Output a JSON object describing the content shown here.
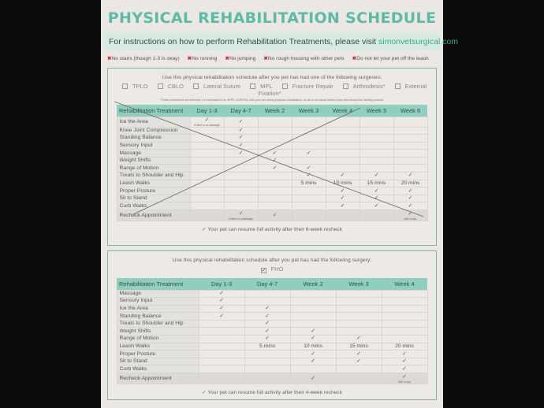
{
  "title": "PHYSICAL REHABILITATION SCHEDULE",
  "banner": {
    "text": "For instructions on how to perform Rehabilitation Treatments, please visit ",
    "link": "simonvetsurgical.com"
  },
  "rules": [
    "No stairs (though 1-3 is okay)",
    "No running",
    "No jumping",
    "No rough housing with other pets",
    "Do not let your pet off the leash"
  ],
  "schedule1": {
    "intro": "Use this physical rehabilitation schedule after you pet has had one of the following surgeries:",
    "surgeries": [
      "TPLO",
      "CBLO",
      "Lateral Suture",
      "MPL",
      "Fracture Repair",
      "Arthrodesis*",
      "External Fixation*"
    ],
    "note": "*These procedures are intensive, it is important to be VERY CAREFUL with your pet during physical rehabilitation, so as to not cause further injury and disrupt the healing process.",
    "headers": [
      "Rehabilitation Treatment",
      "Day 1-3",
      "Day 4-7",
      "Week 2",
      "Week 3",
      "Week 4",
      "Week 5",
      "Week 6"
    ],
    "rows": [
      [
        "Ice the Area",
        "✓|if there is no bandage",
        "✓",
        "",
        "",
        "",
        "",
        ""
      ],
      [
        "Knee Joint Compression",
        "",
        "✓",
        "",
        "",
        "",
        "",
        ""
      ],
      [
        "Standing Balance",
        "",
        "✓",
        "",
        "",
        "",
        "",
        ""
      ],
      [
        "Sensory Input",
        "",
        "✓",
        "",
        "",
        "",
        "",
        ""
      ],
      [
        "Massage",
        "",
        "✓",
        "✓",
        "✓",
        "",
        "",
        ""
      ],
      [
        "Weight Shifts",
        "",
        "",
        "✓",
        "",
        "",
        "",
        ""
      ],
      [
        "Range of Motion",
        "",
        "",
        "✓",
        "✓",
        "",
        "",
        ""
      ],
      [
        "Treats to Shoulder and Hip",
        "",
        "",
        "",
        "✓",
        "✓",
        "✓",
        "✓"
      ],
      [
        "Leash Walks",
        "",
        "",
        "",
        "5 mins",
        "10 mins",
        "15 mins",
        "20 mins"
      ],
      [
        "Proper Posture",
        "",
        "",
        "",
        "",
        "✓",
        "✓",
        "✓"
      ],
      [
        "Sit to Stand",
        "",
        "",
        "",
        "",
        "✓",
        "✓",
        "✓"
      ],
      [
        "Curb Walks",
        "",
        "",
        "",
        "",
        "✓",
        "✓",
        "✓"
      ],
      [
        "Recheck Appointment",
        "",
        "✓|if there is a bandage",
        "✓",
        "",
        "",
        "",
        "✓|with x-rays"
      ]
    ],
    "footer": "✓ Your pet can resume full activity after their 6-week recheck"
  },
  "schedule2": {
    "intro": "Use this physical rehabilitation schedule after you pet has had the following surgery:",
    "surgeries": [
      "FHO"
    ],
    "headers": [
      "Rehabilitation Treatment",
      "Day 1-3",
      "Day 4-7",
      "Week 2",
      "Week 3",
      "Week 4"
    ],
    "rows": [
      [
        "Massage",
        "✓",
        "",
        "",
        "",
        ""
      ],
      [
        "Sensory Input",
        "✓",
        "",
        "",
        "",
        ""
      ],
      [
        "Ice the Area",
        "✓",
        "✓",
        "",
        "",
        ""
      ],
      [
        "Standing Balance",
        "✓",
        "✓",
        "",
        "",
        ""
      ],
      [
        "Treats to Shoulder and Hip",
        "",
        "✓",
        "",
        "",
        ""
      ],
      [
        "Weight Shifts",
        "",
        "✓",
        "✓",
        "",
        ""
      ],
      [
        "Range of Motion",
        "",
        "✓",
        "✓",
        "✓",
        ""
      ],
      [
        "Leash Walks",
        "",
        "5 mins",
        "10 mins",
        "15 mins",
        "20 mins"
      ],
      [
        "Proper Posture",
        "",
        "",
        "✓",
        "✓",
        "✓"
      ],
      [
        "Sit to Stand",
        "",
        "",
        "✓",
        "✓",
        "✓"
      ],
      [
        "Curb Walks",
        "",
        "",
        "",
        "",
        "✓"
      ],
      [
        "Recheck Appointment",
        "",
        "",
        "✓",
        "",
        "✓|with x-rays"
      ]
    ],
    "footer": "✓ Your pet can resume full activity after their 4-week recheck"
  }
}
